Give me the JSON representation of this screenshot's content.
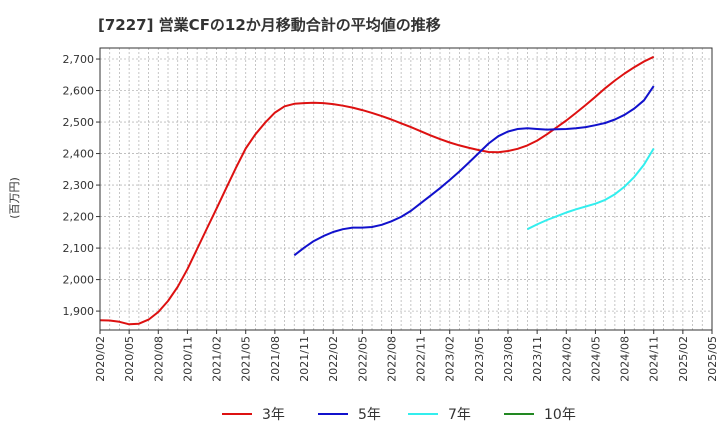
{
  "chart_data": {
    "type": "line",
    "title": "[7227]  営業CFの12か月移動合計の平均値の推移",
    "ylabel": "(百万円)",
    "xlabel": "",
    "ylim": [
      1840,
      2735
    ],
    "yticks": [
      1900,
      2000,
      2100,
      2200,
      2300,
      2400,
      2500,
      2600,
      2700
    ],
    "ytick_labels": [
      "1,900",
      "2,000",
      "2,100",
      "2,200",
      "2,300",
      "2,400",
      "2,500",
      "2,600",
      "2,700"
    ],
    "xlim": [
      "2020-02",
      "2025-05"
    ],
    "xtick_labels": [
      "2020/02",
      "2020/05",
      "2020/08",
      "2020/11",
      "2021/02",
      "2021/05",
      "2021/08",
      "2021/11",
      "2022/02",
      "2022/05",
      "2022/08",
      "2022/11",
      "2023/02",
      "2023/05",
      "2023/08",
      "2023/11",
      "2024/02",
      "2024/05",
      "2024/08",
      "2024/11",
      "2025/02",
      "2025/05"
    ],
    "grid": true,
    "legend_position": "bottom",
    "series": [
      {
        "name": "3年",
        "color": "#dd1111",
        "x": [
          "2020-02",
          "2020-03",
          "2020-04",
          "2020-05",
          "2020-06",
          "2020-07",
          "2020-08",
          "2020-09",
          "2020-10",
          "2020-11",
          "2020-12",
          "2021-01",
          "2021-02",
          "2021-03",
          "2021-04",
          "2021-05",
          "2021-06",
          "2021-07",
          "2021-08",
          "2021-09",
          "2021-10",
          "2021-11",
          "2021-12",
          "2022-01",
          "2022-02",
          "2022-03",
          "2022-04",
          "2022-05",
          "2022-06",
          "2022-07",
          "2022-08",
          "2022-09",
          "2022-10",
          "2022-11",
          "2022-12",
          "2023-01",
          "2023-02",
          "2023-03",
          "2023-04",
          "2023-05",
          "2023-06",
          "2023-07",
          "2023-08",
          "2023-09",
          "2023-10",
          "2023-11",
          "2023-12",
          "2024-01",
          "2024-02",
          "2024-03",
          "2024-04",
          "2024-05",
          "2024-06",
          "2024-07",
          "2024-08",
          "2024-09",
          "2024-10",
          "2024-11"
        ],
        "values": [
          1871,
          1870,
          1866,
          1858,
          1860,
          1873,
          1897,
          1932,
          1977,
          2033,
          2097,
          2162,
          2226,
          2291,
          2355,
          2416,
          2461,
          2498,
          2530,
          2550,
          2558,
          2560,
          2561,
          2560,
          2557,
          2552,
          2546,
          2538,
          2529,
          2519,
          2508,
          2496,
          2484,
          2471,
          2458,
          2446,
          2435,
          2426,
          2418,
          2411,
          2405,
          2404,
          2408,
          2415,
          2426,
          2441,
          2461,
          2483,
          2505,
          2529,
          2554,
          2580,
          2607,
          2632,
          2654,
          2674,
          2692,
          2707
        ]
      },
      {
        "name": "5年",
        "color": "#1111cc",
        "x": [
          "2021-10",
          "2021-11",
          "2021-12",
          "2022-01",
          "2022-02",
          "2022-03",
          "2022-04",
          "2022-05",
          "2022-06",
          "2022-07",
          "2022-08",
          "2022-09",
          "2022-10",
          "2022-11",
          "2022-12",
          "2023-01",
          "2023-02",
          "2023-03",
          "2023-04",
          "2023-05",
          "2023-06",
          "2023-07",
          "2023-08",
          "2023-09",
          "2023-10",
          "2023-11",
          "2023-12",
          "2024-01",
          "2024-02",
          "2024-03",
          "2024-04",
          "2024-05",
          "2024-06",
          "2024-07",
          "2024-08",
          "2024-09",
          "2024-10",
          "2024-11"
        ],
        "values": [
          2077,
          2101,
          2122,
          2138,
          2151,
          2160,
          2165,
          2165,
          2167,
          2174,
          2185,
          2199,
          2218,
          2242,
          2266,
          2290,
          2316,
          2343,
          2372,
          2402,
          2432,
          2455,
          2470,
          2478,
          2480,
          2478,
          2476,
          2477,
          2478,
          2480,
          2484,
          2490,
          2497,
          2508,
          2523,
          2543,
          2569,
          2614
        ]
      },
      {
        "name": "7年",
        "color": "#33eeee",
        "x": [
          "2023-10",
          "2023-11",
          "2023-12",
          "2024-01",
          "2024-02",
          "2024-03",
          "2024-04",
          "2024-05",
          "2024-06",
          "2024-07",
          "2024-08",
          "2024-09",
          "2024-10",
          "2024-11"
        ],
        "values": [
          2160,
          2175,
          2189,
          2201,
          2213,
          2223,
          2232,
          2241,
          2253,
          2271,
          2295,
          2326,
          2365,
          2416
        ]
      },
      {
        "name": "10年",
        "color": "#228822",
        "x": [],
        "values": []
      }
    ]
  }
}
